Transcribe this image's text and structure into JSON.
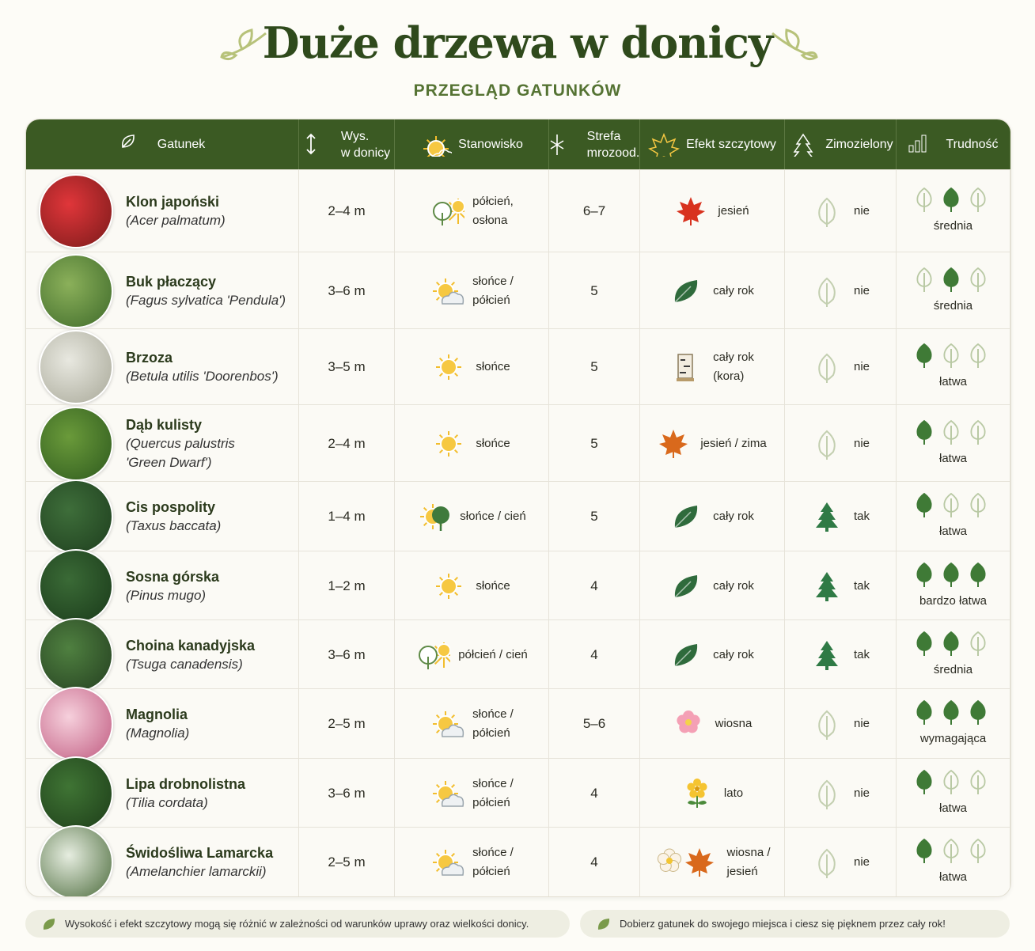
{
  "header": {
    "title": "Duże drzewa w donicy",
    "subtitle": "PRZEGLĄD GATUNKÓW"
  },
  "table": {
    "columns": [
      "Gatunek",
      "Wys.\nw donicy",
      "Stanowisko",
      "Strefa\nmrozood.",
      "Efekt szczytowy",
      "Zimozielony",
      "Trudność"
    ],
    "rows": [
      {
        "name": "Klon japoński",
        "latin": "(Acer palmatum)",
        "height": "2–4 m",
        "position": "półcień,\nosłona",
        "zone": "6–7",
        "effect": "jesień",
        "evergreen": "nie",
        "difficulty": "średnia"
      },
      {
        "name": "Buk płaczący",
        "latin": "(Fagus sylvatica 'Pendula')",
        "height": "3–6 m",
        "position": "słońce /\npółcień",
        "zone": "5",
        "effect": "cały rok",
        "evergreen": "nie",
        "difficulty": "średnia"
      },
      {
        "name": "Brzoza",
        "latin": "(Betula utilis 'Doorenbos')",
        "height": "3–5 m",
        "position": "słońce",
        "zone": "5",
        "effect": "cały rok\n(kora)",
        "evergreen": "nie",
        "difficulty": "łatwa"
      },
      {
        "name": "Dąb kulisty",
        "latin": "(Quercus palustris\n'Green Dwarf')",
        "height": "2–4 m",
        "position": "słońce",
        "zone": "5",
        "effect": "jesień / zima",
        "evergreen": "nie",
        "difficulty": "łatwa"
      },
      {
        "name": "Cis pospolity",
        "latin": "(Taxus baccata)",
        "height": "1–4 m",
        "position": "słońce / cień",
        "zone": "5",
        "effect": "cały rok",
        "evergreen": "tak",
        "difficulty": "łatwa"
      },
      {
        "name": "Sosna górska",
        "latin": "(Pinus mugo)",
        "height": "1–2 m",
        "position": "słońce",
        "zone": "4",
        "effect": "cały rok",
        "evergreen": "tak",
        "difficulty": "bardzo łatwa"
      },
      {
        "name": "Choina kanadyjska",
        "latin": "(Tsuga canadensis)",
        "height": "3–6 m",
        "position": "półcień / cień",
        "zone": "4",
        "effect": "cały rok",
        "evergreen": "tak",
        "difficulty": "średnia"
      },
      {
        "name": "Magnolia",
        "latin": "(Magnolia)",
        "height": "2–5 m",
        "position": "słońce /\npółcień",
        "zone": "5–6",
        "effect": "wiosna",
        "evergreen": "nie",
        "difficulty": "wymagająca"
      },
      {
        "name": "Lipa drobnolistna",
        "latin": "(Tilia cordata)",
        "height": "3–6 m",
        "position": "słońce /\npółcień",
        "zone": "4",
        "effect": "lato",
        "evergreen": "nie",
        "difficulty": "łatwa"
      },
      {
        "name": "Świdośliwa Lamarcka",
        "latin": "(Amelanchier lamarckii)",
        "height": "2–5 m",
        "position": "słońce /\npółcień",
        "zone": "4",
        "effect": "wiosna /\njesień",
        "evergreen": "nie",
        "difficulty": "łatwa"
      }
    ]
  },
  "footer": {
    "notes": [
      "Wysokość i efekt szczytowy mogą się różnić w zależności od warunków uprawy oraz wielkości donicy.",
      "Dobierz gatunek do swojego miejsca i ciesz się pięknem przez cały rok!"
    ]
  }
}
